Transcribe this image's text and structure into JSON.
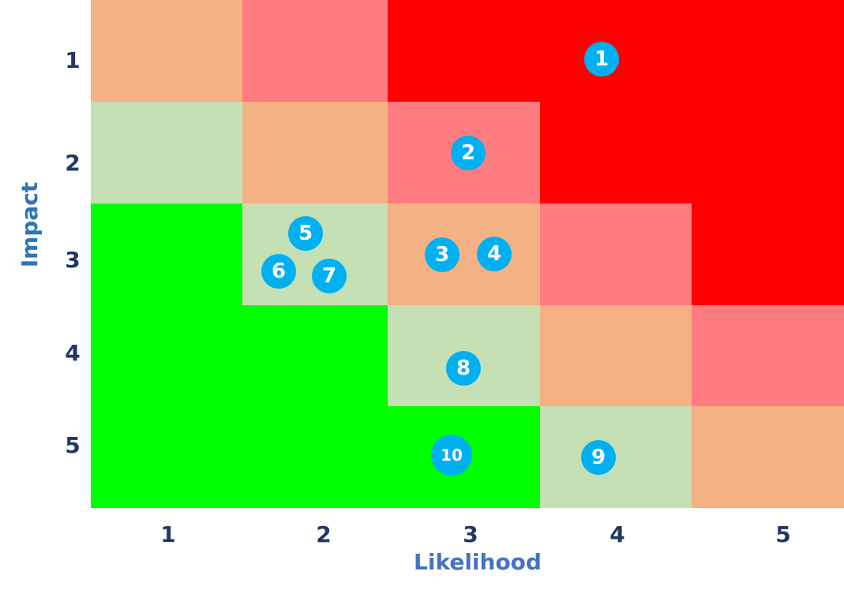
{
  "chart_data": {
    "type": "heatmap",
    "title": "",
    "xlabel": "Likelihood",
    "ylabel": "Impact",
    "x_ticks": [
      "1",
      "2",
      "3",
      "4",
      "5"
    ],
    "y_ticks": [
      "1",
      "2",
      "3",
      "4",
      "5"
    ],
    "colors": {
      "red": "#FF0000",
      "light_red": "#FF7C80",
      "orange": "#F4B183",
      "light_green": "#C5E0B4",
      "green": "#00FF00",
      "marker": "#00B0F0",
      "tick_text": "#1F3864",
      "axis_title": "#2E75B6",
      "xlabel_color": "#4472C4"
    },
    "grid": [
      [
        "orange",
        "light_red",
        "red",
        "red",
        "red"
      ],
      [
        "light_green",
        "orange",
        "light_red",
        "red",
        "red"
      ],
      [
        "green",
        "light_green",
        "orange",
        "light_red",
        "red"
      ],
      [
        "green",
        "green",
        "light_green",
        "orange",
        "light_red"
      ],
      [
        "green",
        "green",
        "green",
        "light_green",
        "orange"
      ]
    ],
    "risks": [
      {
        "label": "1",
        "likelihood": 4,
        "impact": 1
      },
      {
        "label": "2",
        "likelihood": 3,
        "impact": 2
      },
      {
        "label": "3",
        "likelihood": 3,
        "impact": 3
      },
      {
        "label": "4",
        "likelihood": 3,
        "impact": 3
      },
      {
        "label": "5",
        "likelihood": 2,
        "impact": 3
      },
      {
        "label": "6",
        "likelihood": 2,
        "impact": 3
      },
      {
        "label": "7",
        "likelihood": 2,
        "impact": 3
      },
      {
        "label": "8",
        "likelihood": 3,
        "impact": 4
      },
      {
        "label": "9",
        "likelihood": 4,
        "impact": 5
      },
      {
        "label": "10",
        "likelihood": 3,
        "impact": 5
      }
    ]
  }
}
